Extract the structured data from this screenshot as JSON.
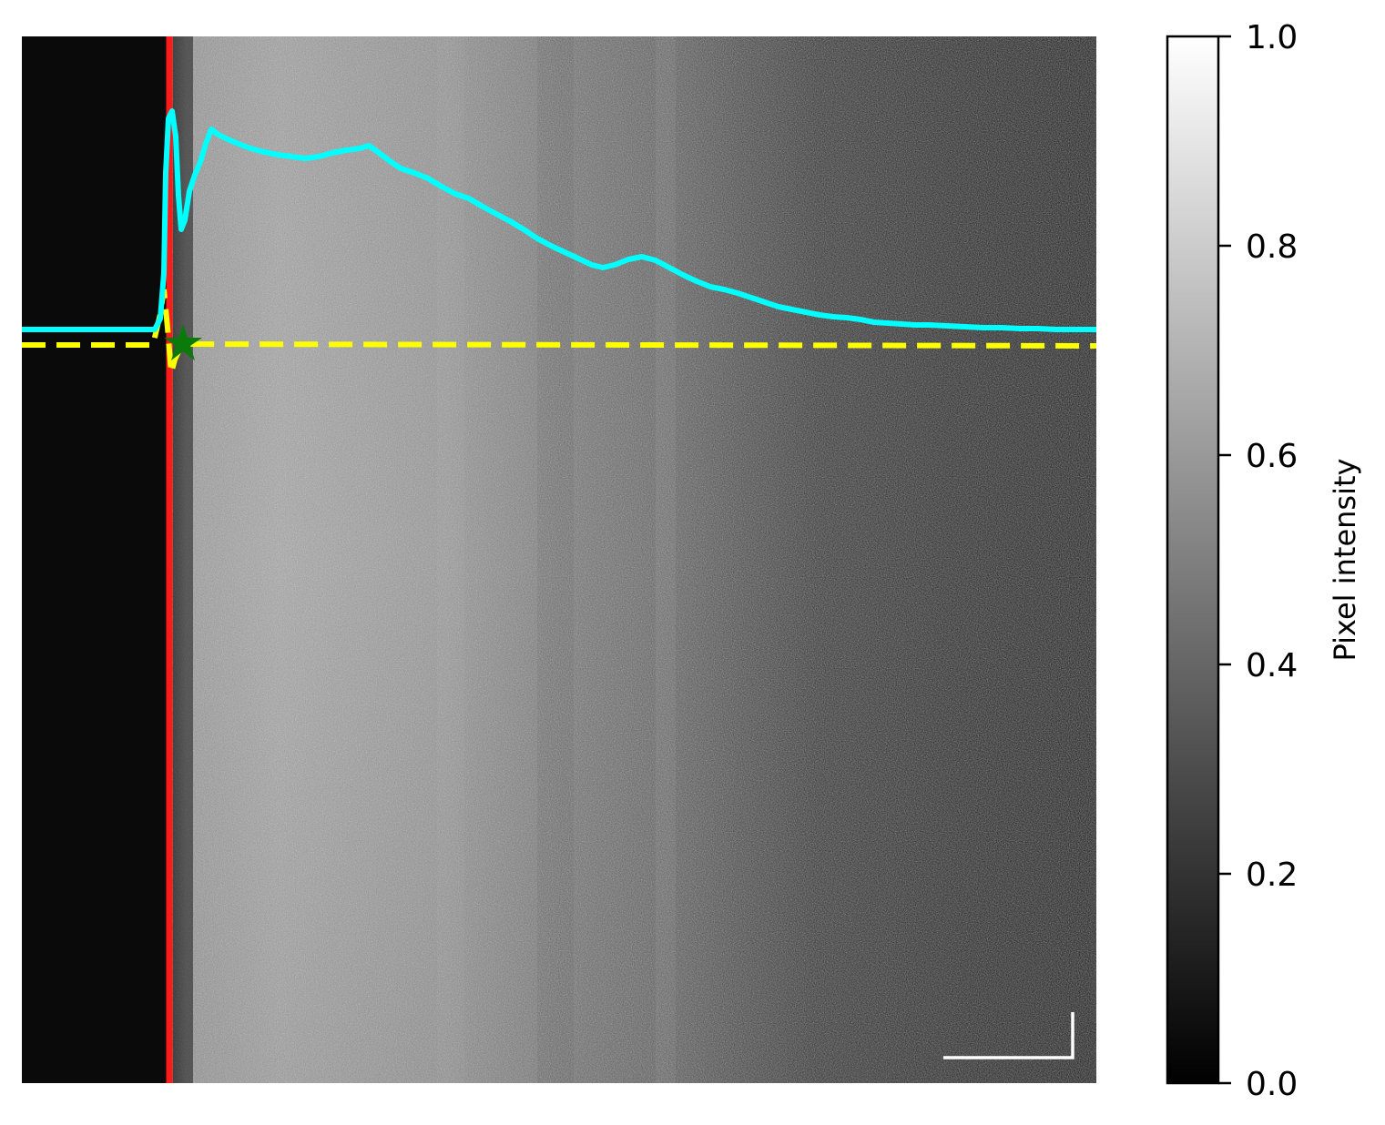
{
  "image_panel": {
    "description_colors": {
      "left_region": "#0a0a0a",
      "edge_line": "#ff1a1a",
      "profile_line": "#00ffff",
      "reference_line": "#ffff00",
      "marker": "#0a7a0a",
      "scalebar": "#ffffff"
    },
    "profile_marker": "star-icon"
  },
  "colorbar": {
    "label": "Pixel intensity",
    "ticks": [
      "0.0",
      "0.2",
      "0.4",
      "0.6",
      "0.8",
      "1.0"
    ],
    "range": [
      0.0,
      1.0
    ]
  }
}
